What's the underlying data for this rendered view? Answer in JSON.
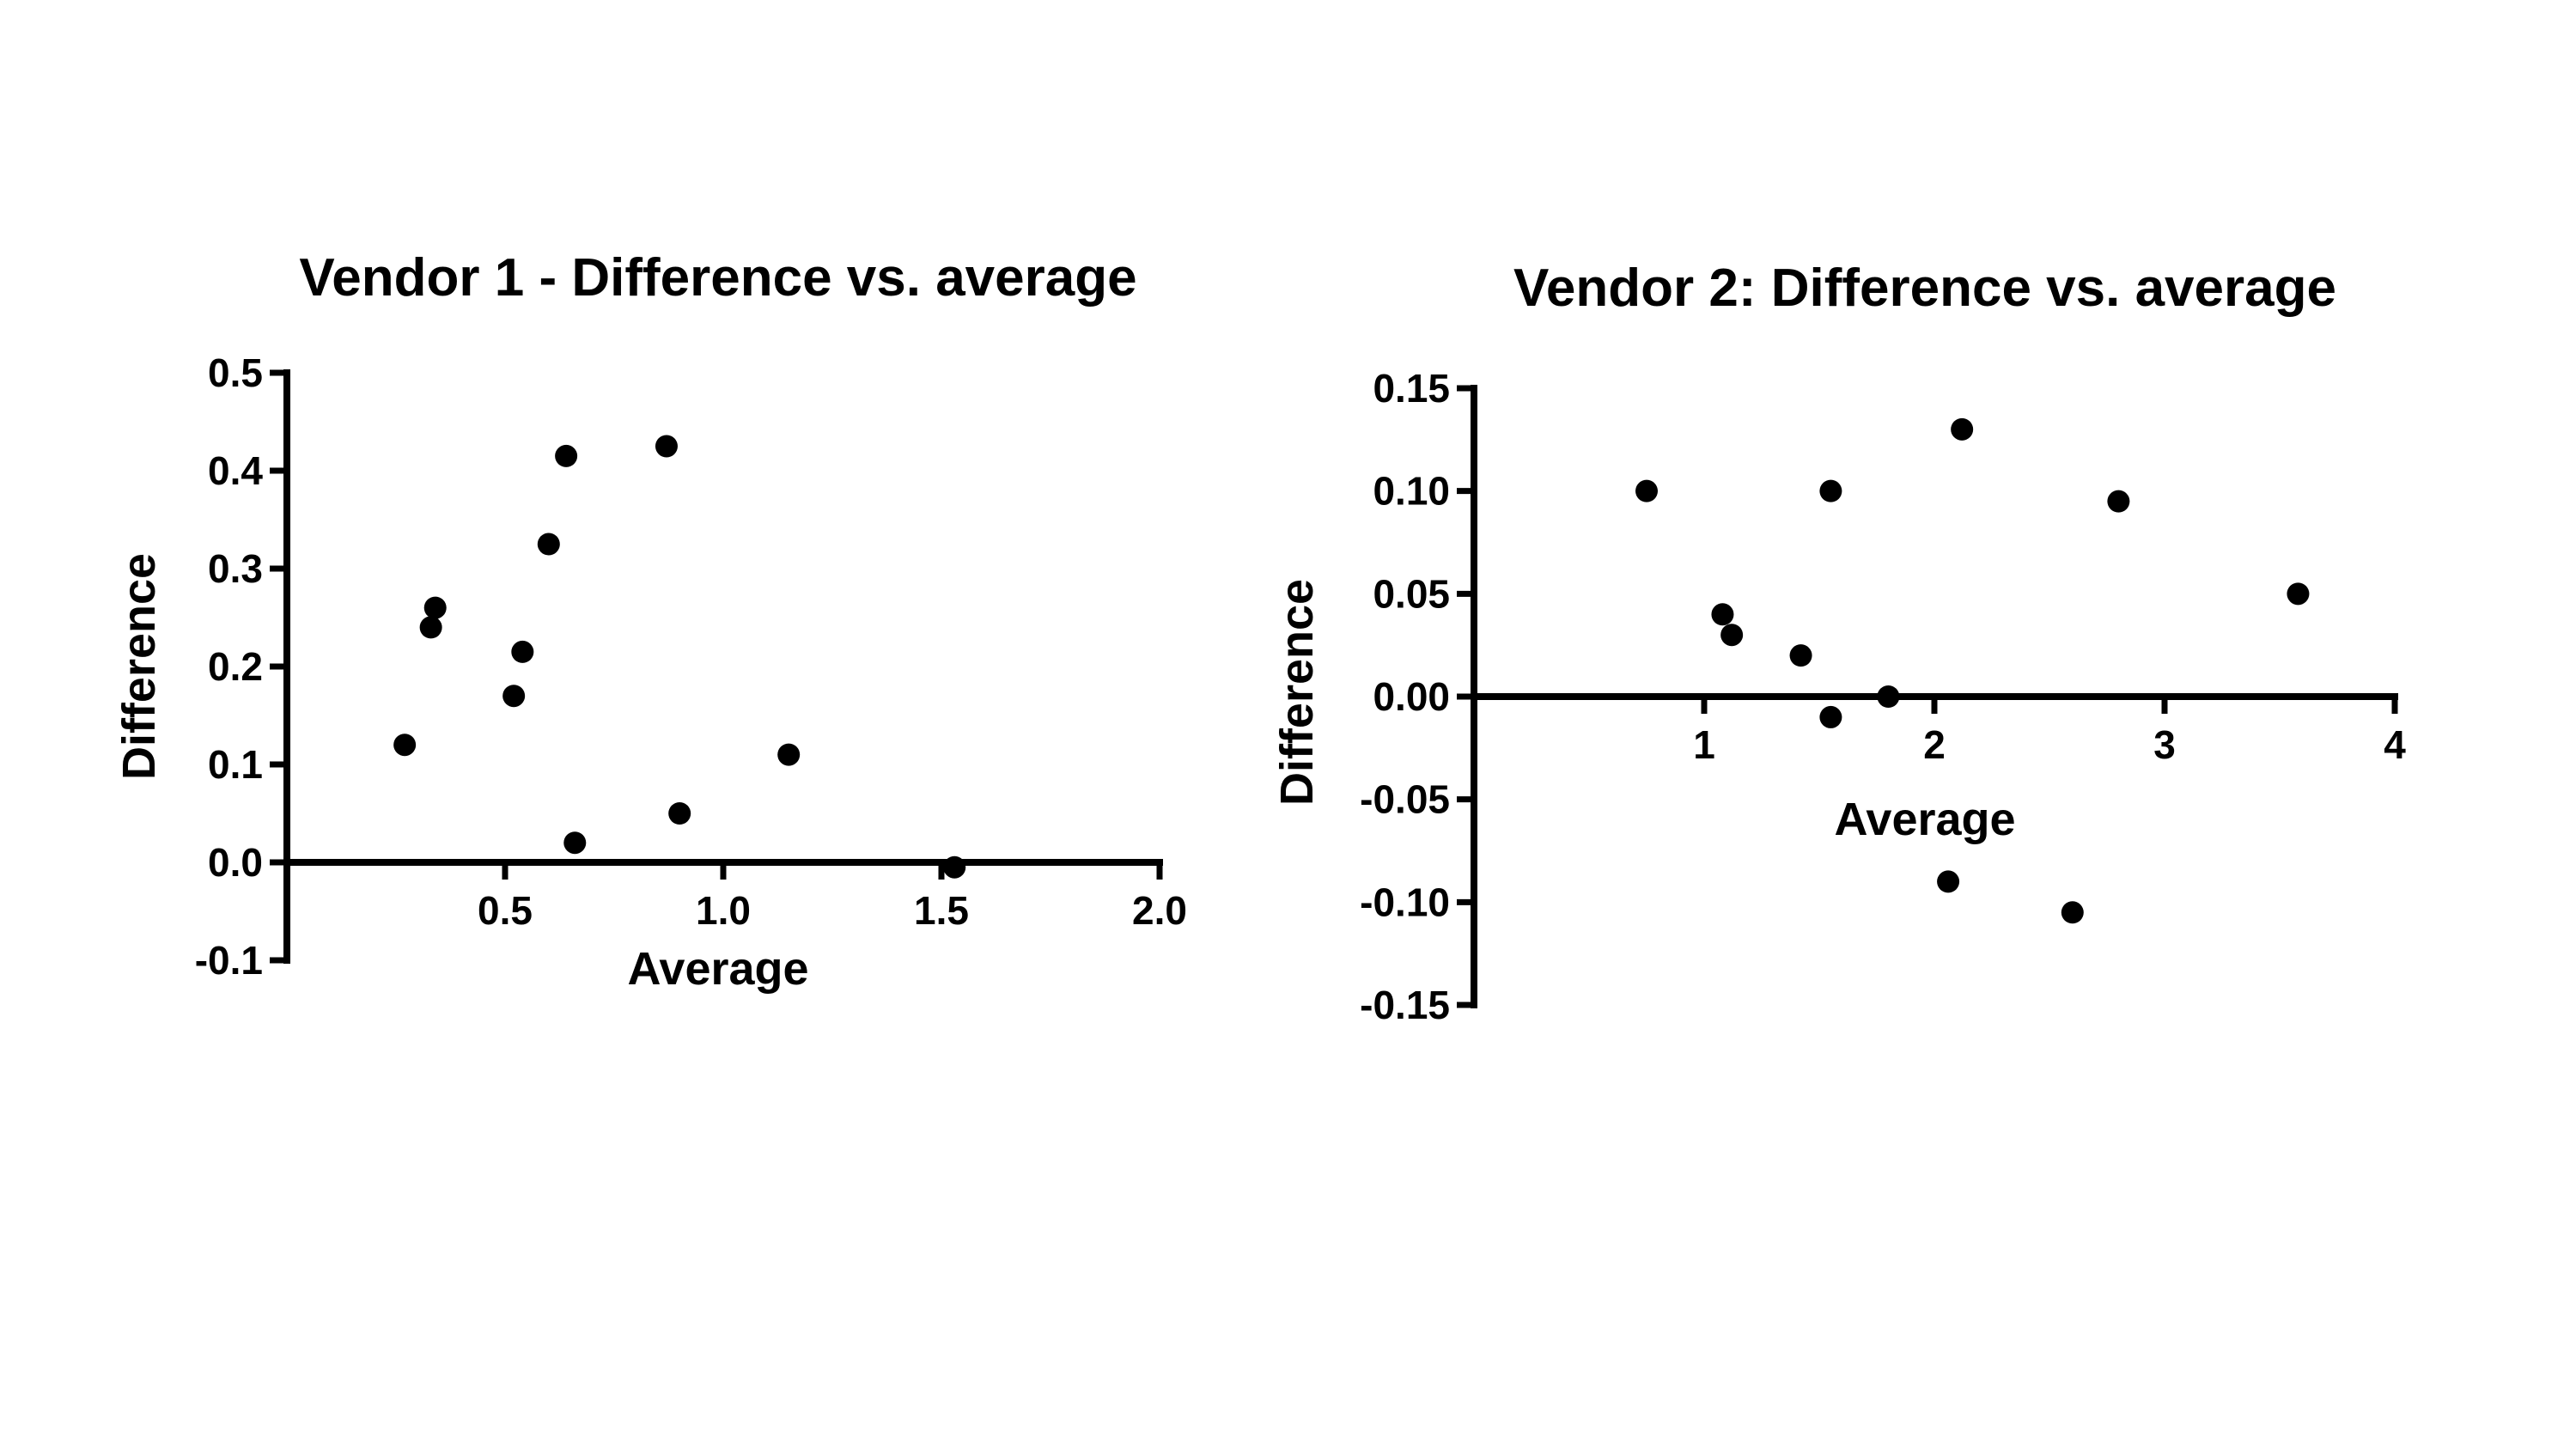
{
  "chart_data": [
    {
      "type": "scatter",
      "title": "Vendor 1 - Difference vs. average",
      "xlabel": "Average",
      "ylabel": "Difference",
      "xlim": [
        0,
        2.0
      ],
      "ylim": [
        -0.1,
        0.5
      ],
      "x_ticks": [
        0.5,
        1.0,
        1.5,
        2.0
      ],
      "x_tick_labels": [
        "0.5",
        "1.0",
        "1.5",
        "2.0"
      ],
      "y_ticks": [
        -0.1,
        0.0,
        0.1,
        0.2,
        0.3,
        0.4,
        0.5
      ],
      "y_tick_labels": [
        "-0.1",
        "0.0",
        "0.1",
        "0.2",
        "0.3",
        "0.4",
        "0.5"
      ],
      "grid": false,
      "legend": "none",
      "series": [
        {
          "name": "Vendor 1",
          "color": "#000000",
          "points": [
            {
              "x": 0.27,
              "y": 0.12
            },
            {
              "x": 0.33,
              "y": 0.24
            },
            {
              "x": 0.34,
              "y": 0.26
            },
            {
              "x": 0.52,
              "y": 0.17
            },
            {
              "x": 0.54,
              "y": 0.215
            },
            {
              "x": 0.6,
              "y": 0.325
            },
            {
              "x": 0.64,
              "y": 0.415
            },
            {
              "x": 0.66,
              "y": 0.02
            },
            {
              "x": 0.87,
              "y": 0.425
            },
            {
              "x": 0.9,
              "y": 0.05
            },
            {
              "x": 1.15,
              "y": 0.11
            },
            {
              "x": 1.53,
              "y": -0.005
            }
          ]
        }
      ]
    },
    {
      "type": "scatter",
      "title": "Vendor 2: Difference vs. average",
      "xlabel": "Average",
      "ylabel": "Difference",
      "xlim": [
        0,
        4
      ],
      "ylim": [
        -0.15,
        0.15
      ],
      "x_ticks": [
        1,
        2,
        3,
        4
      ],
      "x_tick_labels": [
        "1",
        "2",
        "3",
        "4"
      ],
      "y_ticks": [
        -0.15,
        -0.1,
        -0.05,
        0.0,
        0.05,
        0.1,
        0.15
      ],
      "y_tick_labels": [
        "-0.15",
        "-0.10",
        "-0.05",
        "0.00",
        "0.05",
        "0.10",
        "0.15"
      ],
      "grid": false,
      "legend": "none",
      "series": [
        {
          "name": "Vendor 2",
          "color": "#000000",
          "points": [
            {
              "x": 0.75,
              "y": 0.1
            },
            {
              "x": 1.08,
              "y": 0.04
            },
            {
              "x": 1.12,
              "y": 0.03
            },
            {
              "x": 1.42,
              "y": 0.02
            },
            {
              "x": 1.55,
              "y": 0.1
            },
            {
              "x": 1.55,
              "y": -0.01
            },
            {
              "x": 1.8,
              "y": 0.0
            },
            {
              "x": 2.06,
              "y": -0.09
            },
            {
              "x": 2.12,
              "y": 0.13
            },
            {
              "x": 2.6,
              "y": -0.105
            },
            {
              "x": 2.8,
              "y": 0.095
            },
            {
              "x": 3.58,
              "y": 0.05
            }
          ]
        }
      ]
    }
  ]
}
